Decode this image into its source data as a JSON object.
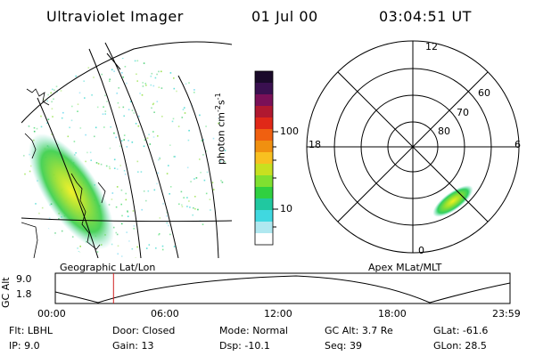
{
  "header": {
    "instrument": "Ultraviolet Imager",
    "date": "01 Jul 00",
    "time": "03:04:51 UT"
  },
  "colorbar": {
    "unit_label": "photon cm",
    "unit_exp1": "-2",
    "unit_s": "s",
    "unit_exp2": "-1",
    "ticks": [
      "100",
      "10"
    ],
    "colors": [
      "#1a0a2a",
      "#3a1050",
      "#7a1058",
      "#b01830",
      "#e02818",
      "#f06010",
      "#f09010",
      "#f8c020",
      "#c8e020",
      "#80e030",
      "#30d040",
      "#20c8a0",
      "#40d8e0",
      "#b0e8f0",
      "#ffffff"
    ]
  },
  "left_panel": {
    "caption": "Geographic Lat/Lon"
  },
  "right_panel": {
    "caption": "Apex MLat/MLT",
    "mlt_labels": {
      "top": "12",
      "left": "18",
      "right": "6",
      "bottom": "0"
    },
    "lat_labels": [
      "60",
      "70",
      "80"
    ]
  },
  "altitude_plot": {
    "axis_title": "GC Alt",
    "y_ticks": [
      "9.0",
      "1.8"
    ],
    "x_ticks": [
      "00:00",
      "06:00",
      "12:00",
      "18:00",
      "23:59"
    ],
    "current_time_fraction": 0.128,
    "colors": {
      "marker": "#d02020"
    }
  },
  "info": {
    "row1": [
      {
        "label": "Flt:",
        "value": "LBHL"
      },
      {
        "label": "Door:",
        "value": "Closed"
      },
      {
        "label": "Mode:",
        "value": "Normal"
      },
      {
        "label": "GC Alt:",
        "value": "3.7 Re"
      },
      {
        "label": "GLat:",
        "value": "-61.6"
      }
    ],
    "row2": [
      {
        "label": "IP:",
        "value": "9.0"
      },
      {
        "label": "Gain:",
        "value": "13"
      },
      {
        "label": "Dsp:",
        "value": "-10.1"
      },
      {
        "label": "Seq:",
        "value": "39"
      },
      {
        "label": "GLon:",
        "value": "28.5"
      }
    ]
  }
}
